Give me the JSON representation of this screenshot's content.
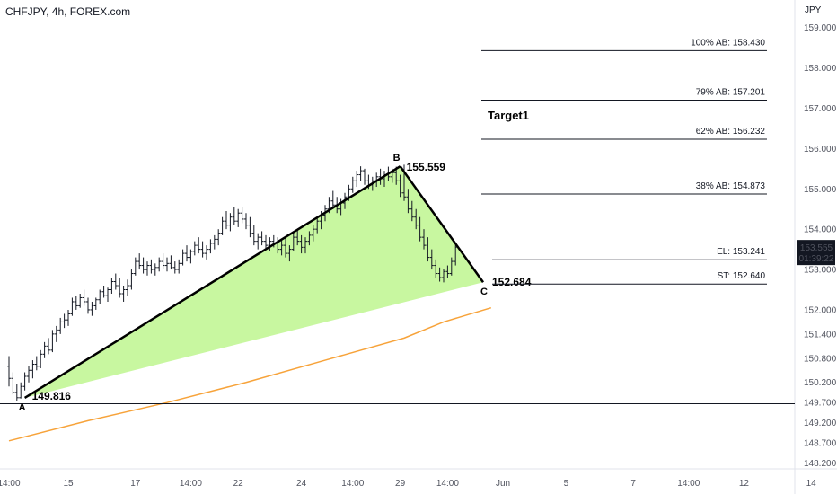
{
  "header": {
    "symbol": "CHFJPY, 4h, FOREX.com",
    "currency": "JPY"
  },
  "price_badge": {
    "price": "153.555",
    "countdown": "01:39:22",
    "color": "#131722"
  },
  "colors": {
    "candle": "#131722",
    "triangle_fill": "#c8f7a0",
    "ma": "#f7a33a",
    "line": "#000000"
  },
  "chart_data": {
    "type": "candlestick",
    "ylim": [
      148.1,
      159.15
    ],
    "y_ticks": [
      "159.000",
      "158.000",
      "157.000",
      "156.000",
      "155.000",
      "154.000",
      "153.000",
      "152.000",
      "151.400",
      "150.800",
      "150.200",
      "149.700",
      "149.200",
      "148.700",
      "148.200"
    ],
    "y_tick_values": [
      159.0,
      158.0,
      157.0,
      156.0,
      155.0,
      154.0,
      153.0,
      152.0,
      151.4,
      150.8,
      150.2,
      149.7,
      149.2,
      148.7,
      148.2
    ],
    "x_ticks": [
      "14:00",
      "15",
      "17",
      "14:00",
      "22",
      "24",
      "14:00",
      "29",
      "14:00",
      "Jun",
      "5",
      "7",
      "14:00",
      "12",
      "14"
    ],
    "x_tick_index": [
      0,
      15,
      32,
      46,
      58,
      74,
      87,
      99,
      111,
      125,
      141,
      158,
      172,
      186,
      203
    ],
    "candles": [
      {
        "o": 150.6,
        "h": 150.85,
        "l": 150.1,
        "c": 150.3
      },
      {
        "o": 150.3,
        "h": 150.45,
        "l": 149.9,
        "c": 149.95
      },
      {
        "o": 149.95,
        "h": 150.15,
        "l": 149.75,
        "c": 149.82
      },
      {
        "o": 149.82,
        "h": 150.2,
        "l": 149.8,
        "c": 150.1
      },
      {
        "o": 150.1,
        "h": 150.45,
        "l": 150.0,
        "c": 150.35
      },
      {
        "o": 150.35,
        "h": 150.6,
        "l": 150.2,
        "c": 150.5
      },
      {
        "o": 150.5,
        "h": 150.75,
        "l": 150.3,
        "c": 150.65
      },
      {
        "o": 150.65,
        "h": 150.85,
        "l": 150.5,
        "c": 150.6
      },
      {
        "o": 150.6,
        "h": 151.0,
        "l": 150.55,
        "c": 150.9
      },
      {
        "o": 150.9,
        "h": 151.2,
        "l": 150.8,
        "c": 151.1
      },
      {
        "o": 151.1,
        "h": 151.3,
        "l": 150.9,
        "c": 151.0
      },
      {
        "o": 151.0,
        "h": 151.5,
        "l": 150.95,
        "c": 151.4
      },
      {
        "o": 151.4,
        "h": 151.6,
        "l": 151.2,
        "c": 151.5
      },
      {
        "o": 151.5,
        "h": 151.8,
        "l": 151.4,
        "c": 151.7
      },
      {
        "o": 151.7,
        "h": 151.9,
        "l": 151.55,
        "c": 151.75
      },
      {
        "o": 151.75,
        "h": 152.0,
        "l": 151.6,
        "c": 151.9
      },
      {
        "o": 151.9,
        "h": 152.3,
        "l": 151.85,
        "c": 152.2
      },
      {
        "o": 152.2,
        "h": 152.35,
        "l": 152.0,
        "c": 152.1
      },
      {
        "o": 152.1,
        "h": 152.4,
        "l": 152.05,
        "c": 152.3
      },
      {
        "o": 152.3,
        "h": 152.5,
        "l": 152.1,
        "c": 152.2
      },
      {
        "o": 152.2,
        "h": 152.3,
        "l": 151.9,
        "c": 152.0
      },
      {
        "o": 152.0,
        "h": 152.2,
        "l": 151.85,
        "c": 152.1
      },
      {
        "o": 152.1,
        "h": 152.3,
        "l": 152.0,
        "c": 152.25
      },
      {
        "o": 152.25,
        "h": 152.5,
        "l": 152.15,
        "c": 152.45
      },
      {
        "o": 152.45,
        "h": 152.6,
        "l": 152.3,
        "c": 152.35
      },
      {
        "o": 152.35,
        "h": 152.55,
        "l": 152.2,
        "c": 152.5
      },
      {
        "o": 152.5,
        "h": 152.8,
        "l": 152.4,
        "c": 152.7
      },
      {
        "o": 152.7,
        "h": 152.9,
        "l": 152.5,
        "c": 152.6
      },
      {
        "o": 152.6,
        "h": 152.8,
        "l": 152.3,
        "c": 152.4
      },
      {
        "o": 152.4,
        "h": 152.6,
        "l": 152.2,
        "c": 152.5
      },
      {
        "o": 152.5,
        "h": 152.75,
        "l": 152.35,
        "c": 152.6
      },
      {
        "o": 152.6,
        "h": 153.0,
        "l": 152.5,
        "c": 152.9
      },
      {
        "o": 152.9,
        "h": 153.3,
        "l": 152.85,
        "c": 153.2
      },
      {
        "o": 153.2,
        "h": 153.4,
        "l": 153.0,
        "c": 153.1
      },
      {
        "o": 153.1,
        "h": 153.3,
        "l": 152.9,
        "c": 153.0
      },
      {
        "o": 153.0,
        "h": 153.2,
        "l": 152.85,
        "c": 153.1
      },
      {
        "o": 153.1,
        "h": 153.25,
        "l": 152.9,
        "c": 153.0
      },
      {
        "o": 153.0,
        "h": 153.15,
        "l": 152.85,
        "c": 153.05
      },
      {
        "o": 153.05,
        "h": 153.3,
        "l": 152.95,
        "c": 153.2
      },
      {
        "o": 153.2,
        "h": 153.4,
        "l": 153.0,
        "c": 153.1
      },
      {
        "o": 153.1,
        "h": 153.3,
        "l": 152.95,
        "c": 153.15
      },
      {
        "o": 153.15,
        "h": 153.35,
        "l": 153.0,
        "c": 153.05
      },
      {
        "o": 153.05,
        "h": 153.2,
        "l": 152.9,
        "c": 153.0
      },
      {
        "o": 153.0,
        "h": 153.25,
        "l": 152.9,
        "c": 153.15
      },
      {
        "o": 153.15,
        "h": 153.5,
        "l": 153.1,
        "c": 153.4
      },
      {
        "o": 153.4,
        "h": 153.6,
        "l": 153.2,
        "c": 153.3
      },
      {
        "o": 153.3,
        "h": 153.5,
        "l": 153.15,
        "c": 153.45
      },
      {
        "o": 153.45,
        "h": 153.7,
        "l": 153.35,
        "c": 153.6
      },
      {
        "o": 153.6,
        "h": 153.8,
        "l": 153.4,
        "c": 153.5
      },
      {
        "o": 153.5,
        "h": 153.7,
        "l": 153.3,
        "c": 153.4
      },
      {
        "o": 153.4,
        "h": 153.6,
        "l": 153.25,
        "c": 153.5
      },
      {
        "o": 153.5,
        "h": 153.75,
        "l": 153.4,
        "c": 153.65
      },
      {
        "o": 153.65,
        "h": 153.85,
        "l": 153.5,
        "c": 153.75
      },
      {
        "o": 153.75,
        "h": 154.0,
        "l": 153.6,
        "c": 153.9
      },
      {
        "o": 153.9,
        "h": 154.3,
        "l": 153.85,
        "c": 154.2
      },
      {
        "o": 154.2,
        "h": 154.45,
        "l": 154.0,
        "c": 154.1
      },
      {
        "o": 154.1,
        "h": 154.4,
        "l": 153.95,
        "c": 154.3
      },
      {
        "o": 154.3,
        "h": 154.55,
        "l": 154.1,
        "c": 154.2
      },
      {
        "o": 154.2,
        "h": 154.5,
        "l": 154.05,
        "c": 154.4
      },
      {
        "o": 154.4,
        "h": 154.55,
        "l": 154.15,
        "c": 154.25
      },
      {
        "o": 154.25,
        "h": 154.4,
        "l": 154.0,
        "c": 154.1
      },
      {
        "o": 154.1,
        "h": 154.3,
        "l": 153.8,
        "c": 153.9
      },
      {
        "o": 153.9,
        "h": 154.1,
        "l": 153.6,
        "c": 153.7
      },
      {
        "o": 153.7,
        "h": 153.9,
        "l": 153.5,
        "c": 153.8
      },
      {
        "o": 153.8,
        "h": 153.95,
        "l": 153.6,
        "c": 153.7
      },
      {
        "o": 153.7,
        "h": 153.85,
        "l": 153.5,
        "c": 153.6
      },
      {
        "o": 153.6,
        "h": 153.8,
        "l": 153.45,
        "c": 153.7
      },
      {
        "o": 153.7,
        "h": 153.85,
        "l": 153.55,
        "c": 153.65
      },
      {
        "o": 153.65,
        "h": 153.8,
        "l": 153.4,
        "c": 153.5
      },
      {
        "o": 153.5,
        "h": 153.75,
        "l": 153.35,
        "c": 153.6
      },
      {
        "o": 153.6,
        "h": 153.8,
        "l": 153.3,
        "c": 153.4
      },
      {
        "o": 153.4,
        "h": 153.6,
        "l": 153.2,
        "c": 153.5
      },
      {
        "o": 153.5,
        "h": 153.9,
        "l": 153.45,
        "c": 153.8
      },
      {
        "o": 153.8,
        "h": 154.0,
        "l": 153.6,
        "c": 153.7
      },
      {
        "o": 153.7,
        "h": 153.85,
        "l": 153.4,
        "c": 153.55
      },
      {
        "o": 153.55,
        "h": 153.8,
        "l": 153.4,
        "c": 153.7
      },
      {
        "o": 153.7,
        "h": 153.95,
        "l": 153.6,
        "c": 153.85
      },
      {
        "o": 153.85,
        "h": 154.1,
        "l": 153.7,
        "c": 154.0
      },
      {
        "o": 154.0,
        "h": 154.3,
        "l": 153.9,
        "c": 154.2
      },
      {
        "o": 154.2,
        "h": 154.45,
        "l": 154.0,
        "c": 154.35
      },
      {
        "o": 154.35,
        "h": 154.6,
        "l": 154.2,
        "c": 154.5
      },
      {
        "o": 154.5,
        "h": 154.8,
        "l": 154.4,
        "c": 154.7
      },
      {
        "o": 154.7,
        "h": 154.95,
        "l": 154.5,
        "c": 154.6
      },
      {
        "o": 154.6,
        "h": 154.8,
        "l": 154.4,
        "c": 154.5
      },
      {
        "o": 154.5,
        "h": 154.75,
        "l": 154.35,
        "c": 154.65
      },
      {
        "o": 154.65,
        "h": 154.9,
        "l": 154.5,
        "c": 154.8
      },
      {
        "o": 154.8,
        "h": 155.1,
        "l": 154.7,
        "c": 155.0
      },
      {
        "o": 155.0,
        "h": 155.3,
        "l": 154.9,
        "c": 155.2
      },
      {
        "o": 155.2,
        "h": 155.45,
        "l": 155.05,
        "c": 155.35
      },
      {
        "o": 155.35,
        "h": 155.56,
        "l": 155.2,
        "c": 155.45
      },
      {
        "o": 155.45,
        "h": 155.5,
        "l": 155.1,
        "c": 155.2
      },
      {
        "o": 155.2,
        "h": 155.35,
        "l": 155.0,
        "c": 155.1
      },
      {
        "o": 155.1,
        "h": 155.3,
        "l": 154.95,
        "c": 155.2
      },
      {
        "o": 155.2,
        "h": 155.4,
        "l": 155.05,
        "c": 155.3
      },
      {
        "o": 155.3,
        "h": 155.5,
        "l": 155.1,
        "c": 155.25
      },
      {
        "o": 155.25,
        "h": 155.45,
        "l": 155.05,
        "c": 155.35
      },
      {
        "o": 155.35,
        "h": 155.55,
        "l": 155.2,
        "c": 155.3
      },
      {
        "o": 155.3,
        "h": 155.5,
        "l": 155.15,
        "c": 155.4
      },
      {
        "o": 155.4,
        "h": 155.55,
        "l": 155.1,
        "c": 155.2
      },
      {
        "o": 155.2,
        "h": 155.35,
        "l": 154.8,
        "c": 154.9
      },
      {
        "o": 154.9,
        "h": 155.6,
        "l": 154.7,
        "c": 154.8
      },
      {
        "o": 154.8,
        "h": 155.0,
        "l": 154.4,
        "c": 154.5
      },
      {
        "o": 154.5,
        "h": 154.7,
        "l": 154.2,
        "c": 154.3
      },
      {
        "o": 154.3,
        "h": 154.5,
        "l": 154.0,
        "c": 154.1
      },
      {
        "o": 154.1,
        "h": 154.3,
        "l": 153.7,
        "c": 153.8
      },
      {
        "o": 153.8,
        "h": 154.0,
        "l": 153.5,
        "c": 153.6
      },
      {
        "o": 153.6,
        "h": 153.8,
        "l": 153.2,
        "c": 153.3
      },
      {
        "o": 153.3,
        "h": 153.5,
        "l": 153.0,
        "c": 153.1
      },
      {
        "o": 153.1,
        "h": 153.25,
        "l": 152.8,
        "c": 152.9
      },
      {
        "o": 152.9,
        "h": 153.05,
        "l": 152.7,
        "c": 152.8
      },
      {
        "o": 152.8,
        "h": 153.0,
        "l": 152.68,
        "c": 152.95
      },
      {
        "o": 152.95,
        "h": 153.1,
        "l": 152.8,
        "c": 152.9
      },
      {
        "o": 152.9,
        "h": 153.3,
        "l": 152.85,
        "c": 153.2
      },
      {
        "o": 153.2,
        "h": 153.6,
        "l": 153.1,
        "c": 153.555
      }
    ],
    "candle_spacing_note": "",
    "pattern": {
      "points": [
        {
          "label": "A",
          "index": 4,
          "price": 149.816,
          "price_label": "149.816"
        },
        {
          "label": "B",
          "index": 99,
          "price": 155.559,
          "price_label": "155.559"
        },
        {
          "label": "C",
          "index": 120,
          "price": 152.684,
          "price_label": "152.684"
        }
      ]
    },
    "moving_average": [
      {
        "index": 0,
        "price": 148.75
      },
      {
        "index": 20,
        "price": 149.25
      },
      {
        "index": 40,
        "price": 149.7
      },
      {
        "index": 60,
        "price": 150.2
      },
      {
        "index": 80,
        "price": 150.75
      },
      {
        "index": 100,
        "price": 151.3
      },
      {
        "index": 110,
        "price": 151.7
      },
      {
        "index": 122,
        "price": 152.05
      }
    ],
    "horizontal_line": {
      "price": 149.67
    },
    "levels": [
      {
        "label": "100% AB: 158.430",
        "price": 158.43
      },
      {
        "label": "79% AB: 157.201",
        "price": 157.201
      },
      {
        "label": "62% AB: 156.232",
        "price": 156.232
      },
      {
        "label": "38% AB: 154.873",
        "price": 154.873
      },
      {
        "label": "EL: 153.241",
        "price": 153.241
      },
      {
        "label": "ST: 152.640",
        "price": 152.64
      }
    ],
    "target_label": "Target1"
  }
}
